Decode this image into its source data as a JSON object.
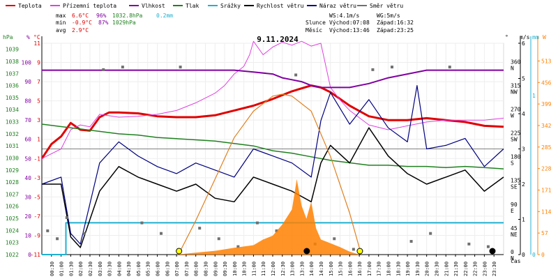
{
  "legend": [
    {
      "label": "Teplota",
      "color": "#e00000"
    },
    {
      "label": "Přízemní teplota",
      "color": "#e040e0"
    },
    {
      "label": "Vlhkost",
      "color": "#8000a0"
    },
    {
      "label": "Tlak",
      "color": "#208020"
    },
    {
      "label": "Srážky",
      "color": "#20b0d0"
    },
    {
      "label": "Rychlost větru",
      "color": "#000000"
    },
    {
      "label": "Náraz větru",
      "color": "#000080"
    },
    {
      "label": "Směr větru",
      "color": "#707070"
    }
  ],
  "stats": {
    "max": {
      "label": "max",
      "temp": "6.6°C",
      "hum": "96%",
      "press": "1032.8hPa",
      "rain": "0.2mm"
    },
    "min": {
      "label": "min",
      "temp": "-0.9°C",
      "hum": "87%",
      "press": "1029hPa"
    },
    "avg": {
      "label": "avg",
      "temp": "2.9°C"
    }
  },
  "wind": {
    "ws": "WS:4.1m/s",
    "wg": "WG:5m/s"
  },
  "sun": {
    "label": "Slunce",
    "rise": "Východ:07:08",
    "set": "Západ:16:32"
  },
  "moon": {
    "label": "Měsíc",
    "rise": "Východ:13:46",
    "set": "Západ:23:25"
  },
  "title": "9.11.2024",
  "axis_units": {
    "hpa": "hPa",
    "pct": "%",
    "degc": "°C",
    "deg": "°",
    "ms": "m/s",
    "mm": "mm",
    "w": "W",
    "time": "čas"
  },
  "chart_data": {
    "type": "line",
    "title": "9.11.2024",
    "x_tick_labels": [
      "00:30",
      "01:00",
      "01:30",
      "02:00",
      "02:30",
      "03:00",
      "03:30",
      "04:00",
      "04:30",
      "05:00",
      "05:30",
      "06:00",
      "06:30",
      "07:00",
      "07:30",
      "08:00",
      "08:30",
      "09:00",
      "09:30",
      "10:00",
      "10:30",
      "11:00",
      "11:30",
      "12:00",
      "12:30",
      "13:00",
      "13:30",
      "14:00",
      "14:30",
      "15:00",
      "15:30",
      "16:00",
      "16:30",
      "17:00",
      "17:30",
      "18:00",
      "18:30",
      "19:00",
      "19:30",
      "20:00",
      "20:30",
      "21:00",
      "21:30",
      "22:00",
      "22:30",
      "23:00",
      "23:30"
    ],
    "y_axes": {
      "pressure_hpa": {
        "ticks": [
          1022,
          1023,
          1024,
          1025,
          1026,
          1027,
          1028,
          1029,
          1030,
          1031,
          1032,
          1033,
          1034,
          1035,
          1036,
          1037,
          1038,
          1039
        ]
      },
      "humidity_pct": {
        "ticks": [
          0,
          10,
          20,
          30,
          40,
          50,
          60,
          70,
          80,
          90,
          100
        ]
      },
      "temperature_c": {
        "ticks": [
          -11,
          -9,
          -7,
          -5,
          -3,
          -1,
          1,
          3,
          5,
          7,
          9,
          11
        ]
      },
      "wind_dir": {
        "ticks": [
          0,
          45,
          90,
          135,
          180,
          225,
          270,
          315,
          360
        ],
        "labels": [
          "N",
          "NE",
          "E",
          "SE",
          "S",
          "SW",
          "W",
          "NW",
          "N"
        ]
      },
      "wind_ms": {
        "ticks": [
          0,
          1,
          2,
          3,
          4,
          5,
          6
        ]
      },
      "rain_mm": {
        "ticks": [
          0,
          1
        ]
      },
      "radiation_w": {
        "ticks": [
          0,
          57,
          114,
          171,
          228,
          285,
          342,
          399,
          456,
          513
        ]
      }
    },
    "series": [
      {
        "name": "Teplota",
        "color": "#e00000",
        "axis": "temperature_c",
        "x": [
          0,
          0.5,
          1,
          1.5,
          2,
          2.5,
          3,
          3.5,
          4,
          5,
          6,
          7,
          8,
          9,
          10,
          11,
          12,
          13,
          13.5,
          14,
          14.5,
          15,
          16,
          17,
          18,
          19,
          20,
          21,
          22,
          23,
          24
        ],
        "y": [
          -1,
          0.5,
          1.3,
          2.7,
          2.0,
          1.9,
          3.3,
          3.8,
          3.8,
          3.7,
          3.4,
          3.3,
          3.3,
          3.5,
          4.0,
          4.5,
          5.2,
          6.0,
          6.3,
          6.6,
          6.4,
          5.9,
          4.5,
          3.4,
          3.0,
          3.0,
          3.2,
          3.0,
          2.8,
          2.4,
          2.3
        ]
      },
      {
        "name": "Přízemní teplota",
        "color": "#e040e0",
        "axis": "temperature_c",
        "x": [
          0,
          1,
          1.5,
          2,
          2.5,
          3,
          4,
          5,
          6,
          7,
          8,
          9,
          9.5,
          10,
          10.5,
          10.8,
          11,
          11.5,
          12,
          12.5,
          13,
          13.5,
          14,
          14.5,
          15,
          15.5,
          16,
          17,
          18,
          19,
          20,
          21,
          22,
          23,
          24
        ],
        "y": [
          -1,
          0,
          2.0,
          2.5,
          2.3,
          3.6,
          3.3,
          3.4,
          3.6,
          4.0,
          4.8,
          5.8,
          6.6,
          7.8,
          8.6,
          9.8,
          11.2,
          9.8,
          10.6,
          11.1,
          10.8,
          11.2,
          10.7,
          11.0,
          6.4,
          5.1,
          4.0,
          2.5,
          2.0,
          2.4,
          2.8,
          3.0,
          3.0,
          3.0,
          3.2
        ]
      },
      {
        "name": "Vlhkost",
        "color": "#8000a0",
        "axis": "humidity_pct",
        "x": [
          0,
          2,
          4,
          6,
          8,
          10,
          11,
          12,
          12.5,
          13,
          13.5,
          14,
          14.5,
          15,
          16,
          17,
          18,
          19,
          20,
          22,
          24
        ],
        "y": [
          96,
          96,
          96,
          96,
          96,
          96,
          95,
          94,
          92,
          91,
          90,
          88,
          87,
          87,
          87,
          89,
          92,
          94,
          96,
          96,
          96
        ]
      },
      {
        "name": "Tlak",
        "color": "#208020",
        "axis": "pressure_hpa",
        "x": [
          0,
          1,
          2,
          3,
          4,
          5,
          6,
          7,
          8,
          9,
          10,
          11,
          12,
          13,
          14,
          15,
          16,
          17,
          18,
          19,
          20,
          21,
          22,
          23,
          24
        ],
        "y": [
          1032.8,
          1032.6,
          1032.4,
          1032.2,
          1032.0,
          1031.9,
          1031.7,
          1031.6,
          1031.5,
          1031.4,
          1031.2,
          1031.0,
          1030.6,
          1030.4,
          1030.1,
          1029.8,
          1029.6,
          1029.4,
          1029.4,
          1029.3,
          1029.3,
          1029.2,
          1029.3,
          1029.2,
          1029.1
        ]
      },
      {
        "name": "Srážky",
        "color": "#20b0d0",
        "axis": "rain_mm",
        "x": [
          0,
          1.25,
          1.25,
          24
        ],
        "y": [
          0,
          0,
          0.2,
          0.2
        ]
      },
      {
        "name": "Rychlost větru",
        "color": "#000000",
        "axis": "wind_ms",
        "x": [
          0,
          1,
          1.5,
          2,
          3,
          4,
          5,
          6,
          7,
          8,
          9,
          10,
          11,
          12,
          13,
          14,
          14.5,
          15,
          16,
          17,
          18,
          19,
          20,
          21,
          22,
          23,
          24
        ],
        "y": [
          2,
          2,
          0.5,
          0.2,
          1.8,
          2.5,
          2.2,
          2.0,
          1.8,
          2.0,
          1.6,
          1.5,
          2.2,
          2.0,
          1.8,
          1.5,
          2.6,
          3.1,
          2.6,
          3.6,
          2.8,
          2.3,
          2.0,
          2.2,
          2.4,
          1.8,
          2.2
        ]
      },
      {
        "name": "Náraz větru",
        "color": "#000080",
        "axis": "wind_ms",
        "x": [
          0,
          1,
          1.5,
          2,
          3,
          4,
          5,
          6,
          7,
          8,
          9,
          10,
          11,
          12,
          13,
          14,
          14.5,
          15,
          16,
          17,
          18,
          19,
          19.5,
          20,
          21,
          22,
          23,
          24
        ],
        "y": [
          2,
          2.2,
          0.6,
          0.3,
          2.6,
          3.2,
          2.8,
          2.5,
          2.3,
          2.6,
          2.4,
          2.2,
          3.0,
          2.8,
          2.6,
          2.2,
          3.8,
          4.6,
          3.7,
          4.4,
          3.6,
          3.2,
          4.8,
          3.0,
          3.1,
          3.3,
          2.5,
          3.0
        ]
      },
      {
        "name": "Směr větru",
        "color": "#707070",
        "axis": "wind_dir",
        "marker": "square",
        "x": [
          0.3,
          0.8,
          1.3,
          2.2,
          3.2,
          4.2,
          5.2,
          6.2,
          7.2,
          8.2,
          9.2,
          10.2,
          11.2,
          12.2,
          13.2,
          14.2,
          15.2,
          16.2,
          17.2,
          18.2,
          19.2,
          20.2,
          21.2,
          22.2,
          23.2
        ],
        "y": [
          45,
          30,
          70,
          40,
          350,
          355,
          60,
          40,
          355,
          50,
          30,
          15,
          60,
          45,
          340,
          20,
          30,
          10,
          350,
          355,
          25,
          40,
          355,
          20,
          15
        ]
      },
      {
        "name": "Radiation",
        "color": "#ff8000",
        "axis": "radiation_w",
        "fill": "area",
        "x": [
          7.0,
          8,
          9,
          10,
          11,
          11.5,
          12,
          12.5,
          13,
          13.25,
          13.5,
          13.75,
          14,
          14.25,
          14.5,
          15,
          15.5,
          16,
          16.5
        ],
        "y": [
          0,
          5,
          10,
          18,
          25,
          40,
          50,
          80,
          120,
          200,
          130,
          95,
          140,
          70,
          40,
          30,
          20,
          8,
          0
        ]
      },
      {
        "name": "Sun altitude",
        "color": "#e08020",
        "axis": "radiation_w",
        "x": [
          7.1,
          8,
          9,
          10,
          11,
          12,
          12.5,
          13,
          14,
          15,
          16,
          16.6
        ],
        "y": [
          0,
          90,
          200,
          310,
          380,
          420,
          425,
          420,
          380,
          260,
          110,
          0
        ]
      }
    ]
  }
}
